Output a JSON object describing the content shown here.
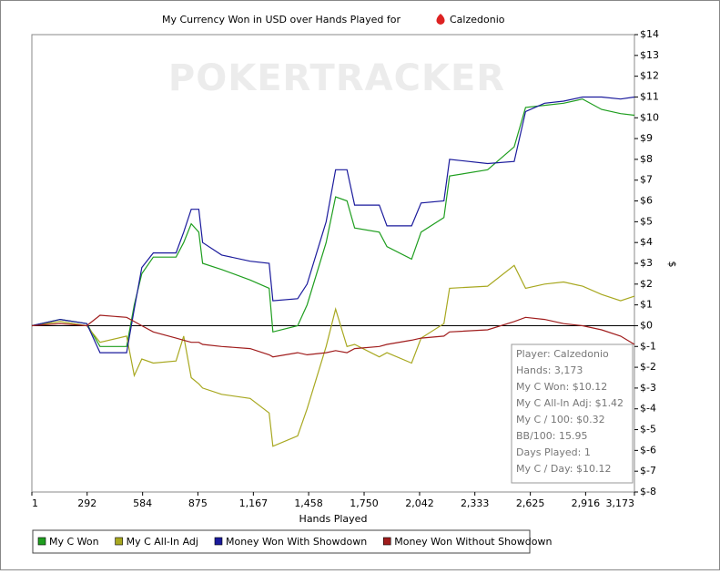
{
  "chart_data": {
    "type": "line",
    "title": "My Currency Won in USD over Hands Played for",
    "player": "Calzedonio",
    "watermark": "POKERTRACKER",
    "xlabel": "Hands Played",
    "ylabel": "$",
    "xlim": [
      1,
      3173
    ],
    "ylim": [
      -8,
      14
    ],
    "xticks": [
      1,
      292,
      584,
      875,
      {
        "value": 1167,
        "label": "1,167"
      },
      {
        "value": 1458,
        "label": "1,458"
      },
      {
        "value": 1750,
        "label": "1,750"
      },
      {
        "value": 2042,
        "label": "2,042"
      },
      {
        "value": 2333,
        "label": "2,333"
      },
      {
        "value": 2625,
        "label": "2,625"
      },
      {
        "value": 2916,
        "label": "2,916"
      },
      {
        "value": 3173,
        "label": "3,173"
      }
    ],
    "yticks": [
      {
        "value": 14,
        "label": "$14"
      },
      {
        "value": 13,
        "label": "$13"
      },
      {
        "value": 12,
        "label": "$12"
      },
      {
        "value": 11,
        "label": "$11"
      },
      {
        "value": 10,
        "label": "$10"
      },
      {
        "value": 9,
        "label": "$9"
      },
      {
        "value": 8,
        "label": "$8"
      },
      {
        "value": 7,
        "label": "$7"
      },
      {
        "value": 6,
        "label": "$6"
      },
      {
        "value": 5,
        "label": "$5"
      },
      {
        "value": 4,
        "label": "$4"
      },
      {
        "value": 3,
        "label": "$3"
      },
      {
        "value": 2,
        "label": "$2"
      },
      {
        "value": 1,
        "label": "$1"
      },
      {
        "value": 0,
        "label": "$0"
      },
      {
        "value": -1,
        "label": "$-1"
      },
      {
        "value": -2,
        "label": "$-2"
      },
      {
        "value": -3,
        "label": "$-3"
      },
      {
        "value": -4,
        "label": "$-4"
      },
      {
        "value": -5,
        "label": "$-5"
      },
      {
        "value": -6,
        "label": "$-6"
      },
      {
        "value": -7,
        "label": "$-7"
      },
      {
        "value": -8,
        "label": "$-8"
      }
    ],
    "x": [
      1,
      150,
      290,
      360,
      500,
      540,
      580,
      640,
      760,
      800,
      840,
      880,
      900,
      1000,
      1150,
      1250,
      1270,
      1400,
      1450,
      1550,
      1600,
      1660,
      1700,
      1830,
      1870,
      2000,
      2050,
      2170,
      2200,
      2400,
      2540,
      2600,
      2700,
      2800,
      2900,
      3000,
      3100,
      3173
    ],
    "series": [
      {
        "name": "My C Won",
        "color": "#1f9e1f",
        "values": [
          0,
          0.3,
          0.1,
          -1.0,
          -1.0,
          1.0,
          2.5,
          3.3,
          3.3,
          4.0,
          4.9,
          4.5,
          3.0,
          2.7,
          2.2,
          1.8,
          -0.3,
          0.0,
          1.0,
          4.0,
          6.2,
          6.0,
          4.7,
          4.5,
          3.8,
          3.2,
          4.5,
          5.2,
          7.2,
          7.5,
          8.6,
          10.5,
          10.6,
          10.7,
          10.9,
          10.4,
          10.2,
          10.12
        ]
      },
      {
        "name": "My C All-In Adj",
        "color": "#a8a820",
        "values": [
          0,
          0.2,
          0.0,
          -0.8,
          -0.5,
          -2.4,
          -1.6,
          -1.8,
          -1.7,
          -0.5,
          -2.5,
          -2.8,
          -3.0,
          -3.3,
          -3.5,
          -4.2,
          -5.8,
          -5.3,
          -4.0,
          -1.0,
          0.8,
          -1.0,
          -0.9,
          -1.5,
          -1.3,
          -1.8,
          -0.6,
          0.1,
          1.8,
          1.9,
          2.9,
          1.8,
          2.0,
          2.1,
          1.9,
          1.5,
          1.2,
          1.42
        ]
      },
      {
        "name": "Money Won With Showdown",
        "color": "#1a1a9c",
        "values": [
          0,
          0.3,
          0.1,
          -1.3,
          -1.3,
          0.8,
          2.8,
          3.5,
          3.5,
          4.5,
          5.6,
          5.6,
          4.0,
          3.4,
          3.1,
          3.0,
          1.2,
          1.3,
          2.0,
          5.0,
          7.5,
          7.5,
          5.8,
          5.8,
          4.8,
          4.8,
          5.9,
          6.0,
          8.0,
          7.8,
          7.9,
          10.3,
          10.7,
          10.8,
          11.0,
          11.0,
          10.9,
          11.0
        ]
      },
      {
        "name": "Money Won Without Showdown",
        "color": "#a01c1c",
        "values": [
          0,
          0.1,
          0.0,
          0.5,
          0.4,
          0.2,
          0.0,
          -0.3,
          -0.6,
          -0.7,
          -0.8,
          -0.8,
          -0.9,
          -1.0,
          -1.1,
          -1.4,
          -1.5,
          -1.3,
          -1.4,
          -1.3,
          -1.2,
          -1.3,
          -1.1,
          -1.0,
          -0.9,
          -0.7,
          -0.6,
          -0.5,
          -0.3,
          -0.2,
          0.2,
          0.4,
          0.3,
          0.1,
          0.0,
          -0.2,
          -0.5,
          -0.9
        ]
      }
    ],
    "tooltip": [
      "Player: Calzedonio",
      "Hands: 3,173",
      "My C Won: $10.12",
      "My C All-In Adj: $1.42",
      "My C / 100: $0.32",
      "BB/100: 15.95",
      "Days Played: 1",
      "My C / Day: $10.12"
    ]
  }
}
